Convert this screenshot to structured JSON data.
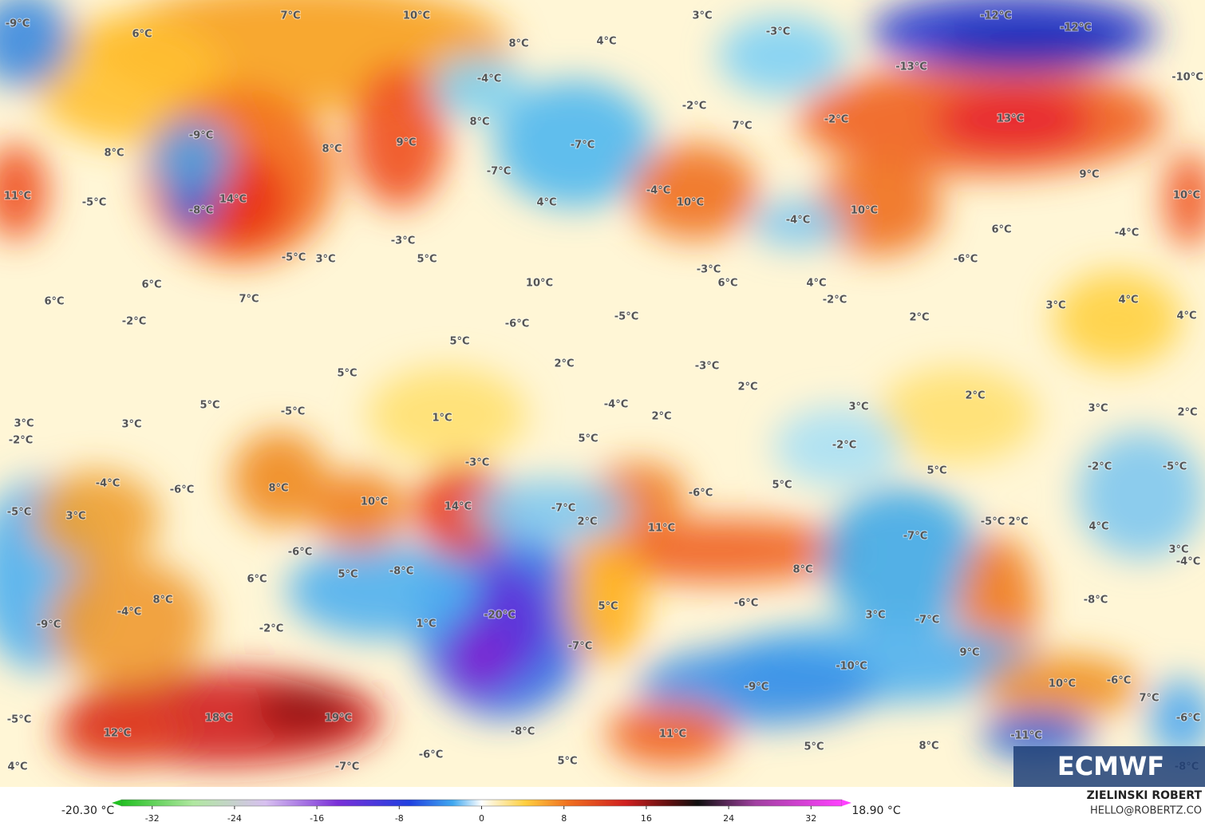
{
  "map": {
    "labels": [
      "-9°C",
      "6°C",
      "7°C",
      "10°C",
      "3°C",
      "-12°C",
      "-12°C",
      "-3°C",
      "8°C",
      "4°C",
      "-13°C",
      "-10°C",
      "-4°C",
      "8°C",
      "-2°C",
      "-2°C",
      "13°C",
      "-9°C",
      "8°C",
      "8°C",
      "9°C",
      "-7°C",
      "7°C",
      "-7°C",
      "9°C",
      "11°C",
      "-5°C",
      "14°C",
      "-8°C",
      "4°C",
      "-4°C",
      "10°C",
      "10°C",
      "-4°C",
      "10°C",
      "6°C",
      "-4°C",
      "-3°C",
      "-5°C",
      "3°C",
      "5°C",
      "-6°C",
      "-3°C",
      "6°C",
      "6°C",
      "10°C",
      "4°C",
      "6°C",
      "7°C",
      "-2°C",
      "3°C",
      "4°C",
      "-2°C",
      "-5°C",
      "-6°C",
      "2°C",
      "4°C",
      "5°C",
      "2°C",
      "-3°C",
      "5°C",
      "2°C",
      "2°C",
      "5°C",
      "-5°C",
      "-4°C",
      "3°C",
      "3°C",
      "2°C",
      "3°C",
      "3°C",
      "1°C",
      "2°C",
      "-2°C",
      "5°C",
      "-2°C",
      "-3°C",
      "-2°C",
      "-5°C",
      "5°C",
      "-4°C",
      "-6°C",
      "8°C",
      "5°C",
      "-6°C",
      "10°C",
      "14°C",
      "-7°C",
      "-5°C",
      "3°C",
      "2°C",
      "-5°C",
      "2°C",
      "11°C",
      "-7°C",
      "4°C",
      "-6°C",
      "3°C",
      "-4°C",
      "8°C",
      "5°C",
      "-8°C",
      "6°C",
      "8°C",
      "-4°C",
      "-6°C",
      "-8°C",
      "5°C",
      "-20°C",
      "3°C",
      "-7°C",
      "-9°C",
      "1°C",
      "-2°C",
      "-7°C",
      "9°C",
      "-10°C",
      "10°C",
      "-6°C",
      "-9°C",
      "7°C",
      "18°C",
      "19°C",
      "-5°C",
      "-6°C",
      "12°C",
      "11°C",
      "-8°C",
      "-11°C",
      "-6°C",
      "5°C",
      "8°C",
      "5°C",
      "-7°C",
      "4°C",
      "-8°C"
    ]
  },
  "logo": "ECMWF",
  "colorbar": {
    "min_label": "-20.30 °C",
    "max_label": "18.90 °C",
    "clim": [
      -35,
      35
    ],
    "ticks": [
      -32,
      -24,
      -16,
      -8,
      0,
      8,
      16,
      24,
      32
    ]
  },
  "credits": {
    "author": "ZIELINSKI ROBERT",
    "contact": "HELLO@ROBERTZ.CO"
  }
}
